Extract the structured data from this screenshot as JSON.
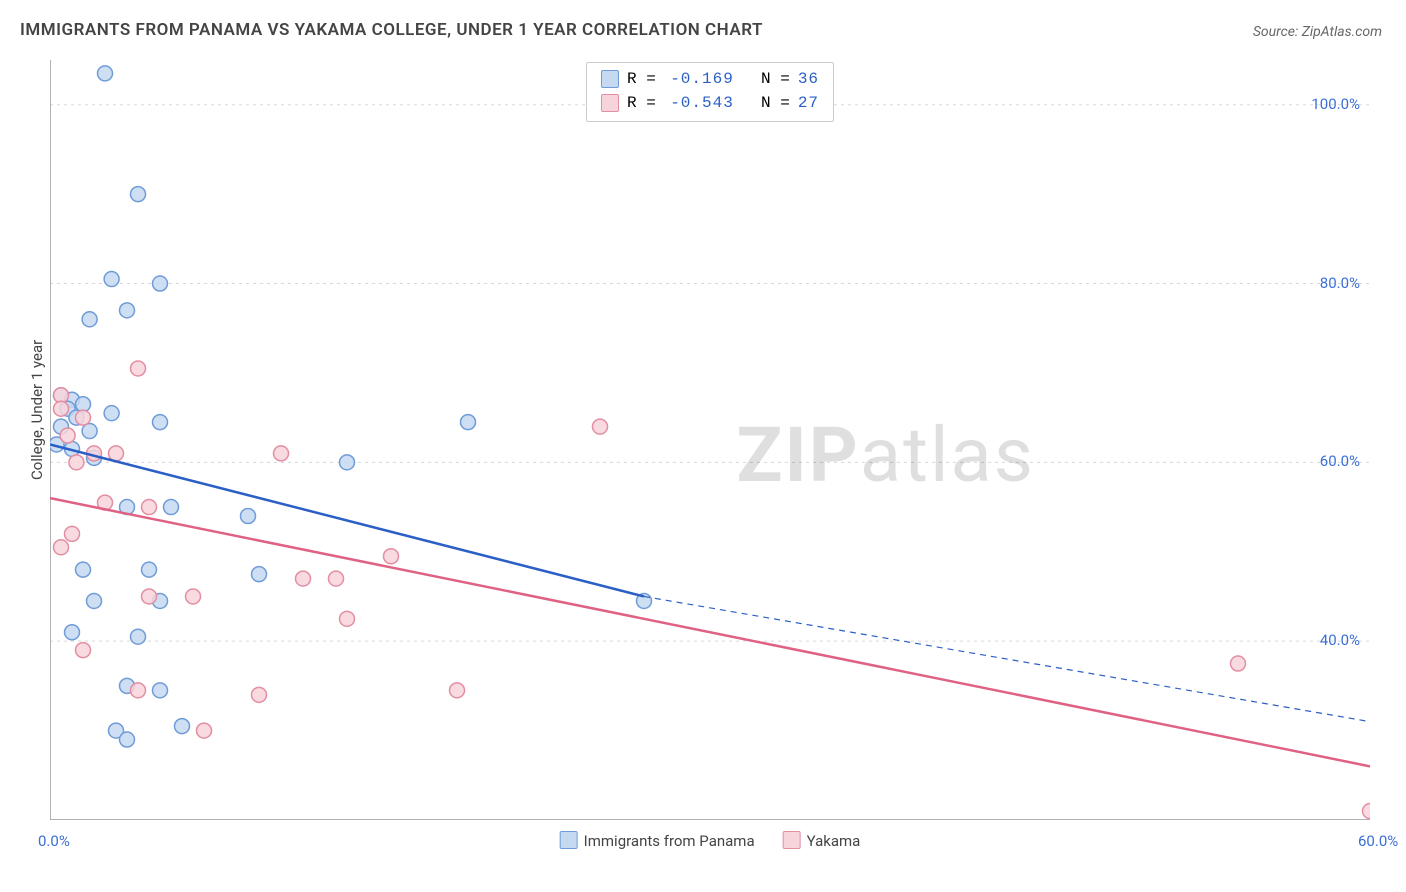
{
  "title": "IMMIGRANTS FROM PANAMA VS YAKAMA COLLEGE, UNDER 1 YEAR CORRELATION CHART",
  "source": "Source: ZipAtlas.com",
  "ylabel": "College, Under 1 year",
  "watermark": "ZIPatlas",
  "chart": {
    "type": "scatter-with-regression",
    "background_color": "#ffffff",
    "grid_color": "#d8d8d8",
    "axis_line_color": "#999999",
    "xlim": [
      0,
      60
    ],
    "ylim": [
      20,
      105
    ],
    "xticks": [
      {
        "pos": 0.0,
        "label": "0.0%"
      },
      {
        "pos": 60.0,
        "label": "60.0%"
      }
    ],
    "yticks": [
      {
        "pos": 40.0,
        "label": "40.0%"
      },
      {
        "pos": 60.0,
        "label": "60.0%"
      },
      {
        "pos": 80.0,
        "label": "80.0%"
      },
      {
        "pos": 100.0,
        "label": "100.0%"
      }
    ],
    "marker_radius": 7.5,
    "marker_stroke_width": 1.5,
    "line_width": 2.5,
    "series": [
      {
        "name": "Immigrants from Panama",
        "fill": "#c5d9f1",
        "stroke": "#6f9cd8",
        "line_color": "#2b5fc6",
        "R": "-0.169",
        "N": "36",
        "points": [
          [
            2.5,
            103.5
          ],
          [
            4.0,
            90.0
          ],
          [
            2.8,
            80.5
          ],
          [
            5.0,
            80.0
          ],
          [
            3.5,
            77.0
          ],
          [
            1.8,
            76.0
          ],
          [
            0.5,
            67.5
          ],
          [
            1.0,
            67.0
          ],
          [
            1.5,
            66.5
          ],
          [
            0.8,
            66.0
          ],
          [
            2.8,
            65.5
          ],
          [
            1.2,
            65.0
          ],
          [
            5.0,
            64.5
          ],
          [
            0.5,
            64.0
          ],
          [
            1.8,
            63.5
          ],
          [
            0.3,
            62.0
          ],
          [
            1.0,
            61.5
          ],
          [
            2.0,
            60.5
          ],
          [
            19.0,
            64.5
          ],
          [
            13.5,
            60.0
          ],
          [
            3.5,
            55.0
          ],
          [
            5.5,
            55.0
          ],
          [
            9.0,
            54.0
          ],
          [
            1.5,
            48.0
          ],
          [
            4.5,
            48.0
          ],
          [
            9.5,
            47.5
          ],
          [
            27.0,
            44.5
          ],
          [
            2.0,
            44.5
          ],
          [
            5.0,
            44.5
          ],
          [
            1.0,
            41.0
          ],
          [
            4.0,
            40.5
          ],
          [
            3.5,
            35.0
          ],
          [
            5.0,
            34.5
          ],
          [
            3.0,
            30.0
          ],
          [
            6.0,
            30.5
          ],
          [
            3.5,
            29.0
          ]
        ],
        "regression": {
          "x1": 0,
          "y1": 62.0,
          "x2": 27.0,
          "y2": 45.0
        },
        "extrapolation": {
          "x1": 27.0,
          "y1": 45.0,
          "x2": 60.0,
          "y2": 31.0
        }
      },
      {
        "name": "Yakama",
        "fill": "#f7d3db",
        "stroke": "#e38ea1",
        "line_color": "#e06283",
        "R": "-0.543",
        "N": "27",
        "points": [
          [
            4.0,
            70.5
          ],
          [
            0.5,
            67.5
          ],
          [
            1.5,
            65.0
          ],
          [
            0.8,
            63.0
          ],
          [
            2.0,
            61.0
          ],
          [
            3.0,
            61.0
          ],
          [
            25.0,
            64.0
          ],
          [
            10.5,
            61.0
          ],
          [
            2.5,
            55.5
          ],
          [
            4.5,
            55.0
          ],
          [
            1.0,
            52.0
          ],
          [
            0.5,
            50.5
          ],
          [
            15.5,
            49.5
          ],
          [
            11.5,
            47.0
          ],
          [
            13.0,
            47.0
          ],
          [
            4.5,
            45.0
          ],
          [
            6.5,
            45.0
          ],
          [
            13.5,
            42.5
          ],
          [
            1.5,
            39.0
          ],
          [
            54.0,
            37.5
          ],
          [
            9.5,
            34.0
          ],
          [
            18.5,
            34.5
          ],
          [
            4.0,
            34.5
          ],
          [
            7.0,
            30.0
          ],
          [
            60.0,
            21.0
          ],
          [
            0.5,
            66.0
          ],
          [
            1.2,
            60.0
          ]
        ],
        "regression": {
          "x1": 0,
          "y1": 56.0,
          "x2": 60.0,
          "y2": 26.0
        }
      }
    ]
  },
  "xlegend": [
    {
      "label": "Immigrants from Panama",
      "fill": "#c5d9f1",
      "stroke": "#6f9cd8"
    },
    {
      "label": "Yakama",
      "fill": "#f7d3db",
      "stroke": "#e38ea1"
    }
  ]
}
